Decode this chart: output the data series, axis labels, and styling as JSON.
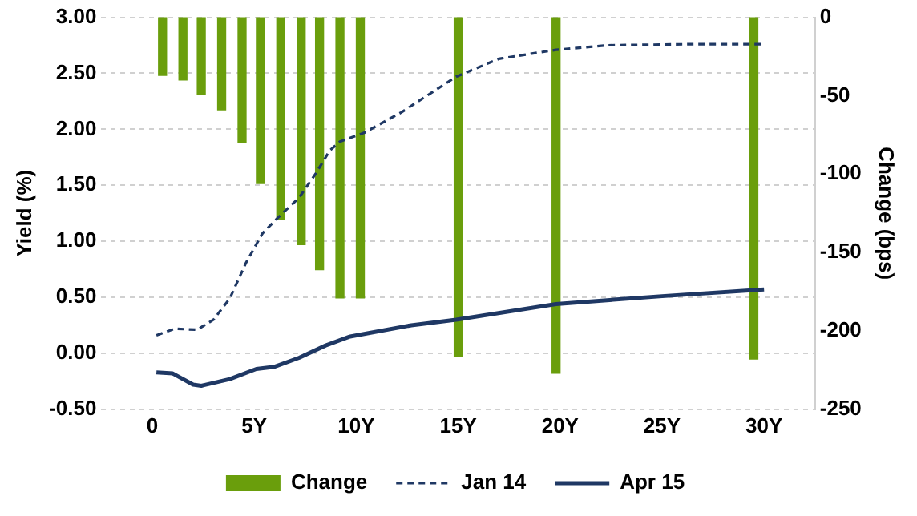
{
  "chart_data": {
    "type": "line",
    "ylabel": "Yield (%)",
    "y2label": "Change (bps)",
    "xlim": [
      0,
      30
    ],
    "xticks": [
      {
        "value": 0,
        "label": "0"
      },
      {
        "value": 5,
        "label": "5Y"
      },
      {
        "value": 10,
        "label": "10Y"
      },
      {
        "value": 15,
        "label": "15Y"
      },
      {
        "value": 20,
        "label": "20Y"
      },
      {
        "value": 25,
        "label": "25Y"
      },
      {
        "value": 30,
        "label": "30Y"
      }
    ],
    "ylim": [
      -0.5,
      3
    ],
    "yticks": [
      {
        "value": -0.5,
        "label": "-0.50"
      },
      {
        "value": 0,
        "label": "0.00"
      },
      {
        "value": 0.5,
        "label": "0.50"
      },
      {
        "value": 1,
        "label": "1.00"
      },
      {
        "value": 1.5,
        "label": "1.50"
      },
      {
        "value": 2,
        "label": "2.00"
      },
      {
        "value": 2.5,
        "label": "2.50"
      },
      {
        "value": 3,
        "label": "3.00"
      }
    ],
    "y2lim": [
      -250,
      0
    ],
    "y2ticks": [
      -250,
      -200,
      -150,
      -100,
      -50,
      0
    ],
    "grid": "y",
    "legend": "bottom",
    "series": [
      {
        "name": "Change",
        "type": "bar",
        "axis": "y2",
        "color": "#6a9e0c",
        "x": [
          0.5,
          1.5,
          2.4,
          3.4,
          4.4,
          5.3,
          6.3,
          7.3,
          8.2,
          9.2,
          10.2,
          15,
          19.8,
          29.5
        ],
        "values": [
          -37,
          -40,
          -49,
          -59,
          -80,
          -106,
          -129,
          -145,
          -161,
          -179,
          -179,
          -216,
          -227,
          -218
        ]
      },
      {
        "name": "Jan 14",
        "line_style": "dashed",
        "color": "#1f3864",
        "x": [
          0.2,
          1.1,
          2.2,
          3,
          3.8,
          4.6,
          5.4,
          6.1,
          7.2,
          8,
          8.7,
          9.2,
          10.4,
          12.2,
          14.9,
          17,
          19.8,
          22.3,
          26.3,
          29.9
        ],
        "values": [
          0.16,
          0.22,
          0.21,
          0.3,
          0.49,
          0.81,
          1.07,
          1.2,
          1.39,
          1.6,
          1.81,
          1.89,
          1.97,
          2.15,
          2.47,
          2.63,
          2.71,
          2.75,
          2.76,
          2.76
        ]
      },
      {
        "name": "Apr 15",
        "line_style": "solid",
        "color": "#1f3864",
        "x": [
          0.2,
          1,
          2,
          2.4,
          3.8,
          5.1,
          6,
          7.2,
          8.5,
          9.7,
          10.6,
          12.7,
          14.9,
          19.8,
          25,
          30
        ],
        "values": [
          -0.17,
          -0.18,
          -0.28,
          -0.29,
          -0.23,
          -0.14,
          -0.12,
          -0.04,
          0.07,
          0.15,
          0.18,
          0.25,
          0.3,
          0.44,
          0.51,
          0.57
        ]
      }
    ]
  }
}
